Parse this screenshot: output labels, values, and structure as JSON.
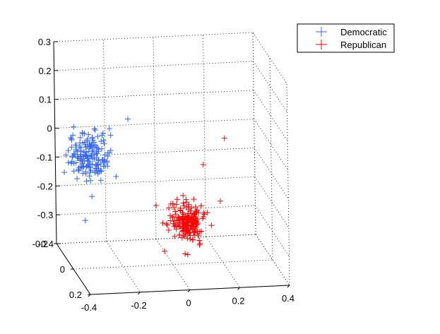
{
  "chart_data": {
    "type": "scatter",
    "projection": "3d",
    "title": "",
    "xlabel": "",
    "ylabel": "",
    "zlabel": "",
    "xlim": [
      -0.4,
      0.4
    ],
    "ylim": [
      -0.2,
      0.2
    ],
    "zlim": [
      -0.4,
      0.3
    ],
    "x_ticks": [
      "-0.4",
      "-0.2",
      "0",
      "0.2",
      "0.4"
    ],
    "y_ticks": [
      "-0.2",
      "0",
      "0.2"
    ],
    "z_ticks": [
      "0.3",
      "0.2",
      "0.1",
      "0",
      "-0.1",
      "-0.2",
      "-0.3",
      "-0.4"
    ],
    "grid": true,
    "legend": {
      "position": "top-right",
      "entries": [
        "Democratic",
        "Republican"
      ]
    },
    "series": [
      {
        "name": "Democratic",
        "color": "#3366ff",
        "marker": "+",
        "center": [
          -0.33,
          0.0,
          -0.01
        ],
        "spread": [
          0.06,
          0.05,
          0.055
        ],
        "count": 170,
        "outliers": [
          [
            -0.18,
            0.02,
            0.12
          ],
          [
            -0.26,
            0.05,
            0.08
          ],
          [
            -0.36,
            0.03,
            -0.22
          ]
        ]
      },
      {
        "name": "Republican",
        "color": "#ff0000",
        "marker": "+",
        "center": [
          0.05,
          0.02,
          -0.25
        ],
        "spread": [
          0.045,
          0.04,
          0.045
        ],
        "count": 200,
        "outliers": [
          [
            0.22,
            -0.02,
            0.02
          ],
          [
            0.12,
            0.02,
            -0.05
          ],
          [
            0.18,
            0.04,
            -0.17
          ],
          [
            -0.05,
            0.05,
            -0.33
          ]
        ]
      }
    ]
  }
}
